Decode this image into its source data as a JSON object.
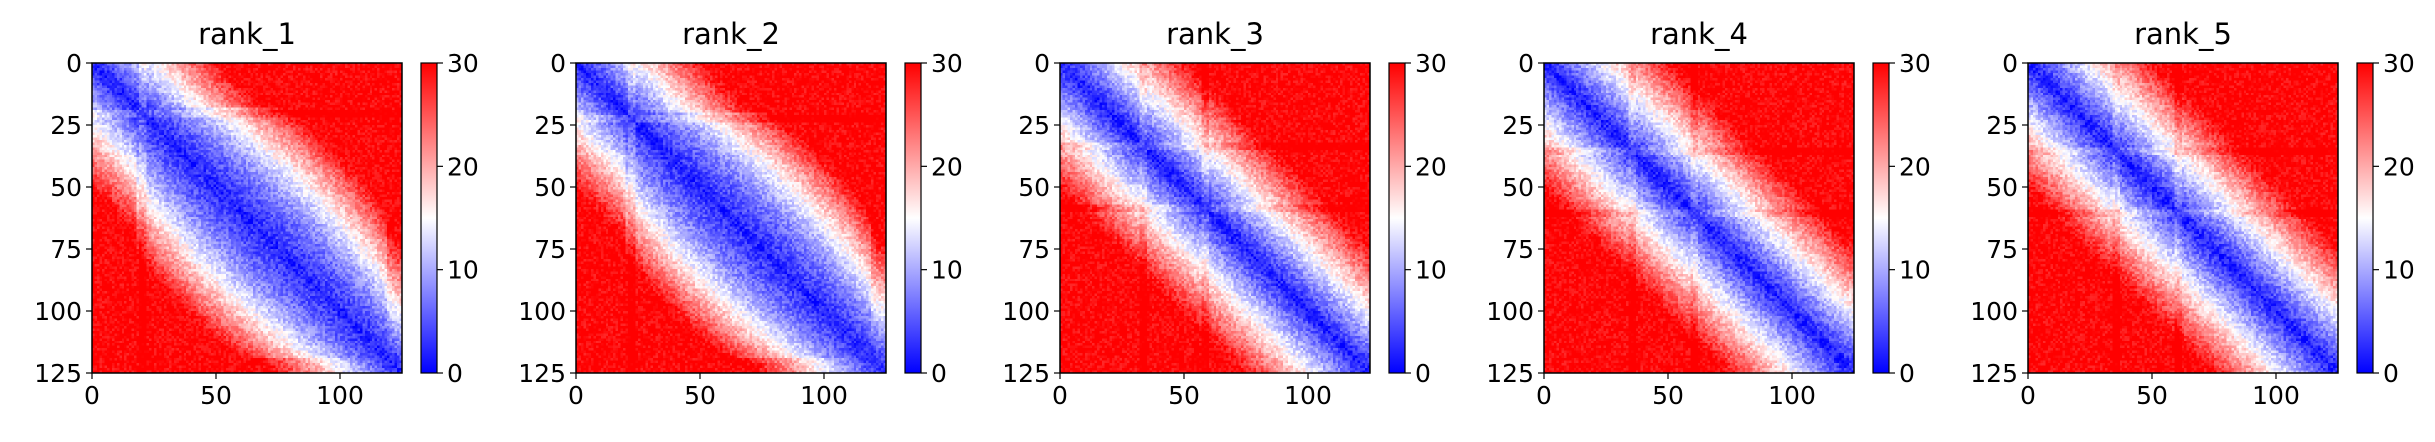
{
  "chart_data": [
    {
      "type": "heatmap",
      "title": "rank_1",
      "matrix_size": 125,
      "x_ticks": [
        "0",
        "50",
        "100"
      ],
      "y_ticks": [
        "0",
        "25",
        "50",
        "75",
        "100",
        "125"
      ],
      "clim": [
        0,
        30
      ],
      "colorbar_ticks": [
        "0",
        "10",
        "20",
        "30"
      ],
      "colormap": {
        "low": "#0000ff",
        "mid": "#ffffff",
        "high": "#ff0000"
      },
      "grid": false,
      "domains": [
        [
          0,
          20
        ],
        [
          18,
          118
        ]
      ],
      "boundaries": [
        20
      ]
    },
    {
      "type": "heatmap",
      "title": "rank_2",
      "matrix_size": 125,
      "x_ticks": [
        "0",
        "50",
        "100"
      ],
      "y_ticks": [
        "0",
        "25",
        "50",
        "75",
        "100",
        "125"
      ],
      "clim": [
        0,
        30
      ],
      "colorbar_ticks": [
        "0",
        "10",
        "20",
        "30"
      ],
      "colormap": {
        "low": "#0000ff",
        "mid": "#ffffff",
        "high": "#ff0000"
      },
      "grid": false,
      "domains": [
        [
          0,
          22
        ],
        [
          20,
          118
        ]
      ],
      "boundaries": [
        22
      ]
    },
    {
      "type": "heatmap",
      "title": "rank_3",
      "matrix_size": 125,
      "x_ticks": [
        "0",
        "50",
        "100"
      ],
      "y_ticks": [
        "0",
        "25",
        "50",
        "75",
        "100",
        "125"
      ],
      "clim": [
        0,
        30
      ],
      "colorbar_ticks": [
        "0",
        "10",
        "20",
        "30"
      ],
      "colormap": {
        "low": "#0000ff",
        "mid": "#ffffff",
        "high": "#ff0000"
      },
      "grid": false,
      "domains": [
        [
          0,
          32
        ],
        [
          33,
          60
        ],
        [
          58,
          118
        ],
        [
          118,
          125
        ]
      ],
      "boundaries": [
        33,
        58
      ]
    },
    {
      "type": "heatmap",
      "title": "rank_4",
      "matrix_size": 125,
      "x_ticks": [
        "0",
        "50",
        "100"
      ],
      "y_ticks": [
        "0",
        "25",
        "50",
        "75",
        "100",
        "125"
      ],
      "clim": [
        0,
        30
      ],
      "colorbar_ticks": [
        "0",
        "10",
        "20",
        "30"
      ],
      "colormap": {
        "low": "#0000ff",
        "mid": "#ffffff",
        "high": "#ff0000"
      },
      "grid": false,
      "domains": [
        [
          0,
          35
        ],
        [
          28,
          62
        ],
        [
          58,
          118
        ],
        [
          118,
          125
        ]
      ],
      "boundaries": [
        35,
        60
      ]
    },
    {
      "type": "heatmap",
      "title": "rank_5",
      "matrix_size": 125,
      "x_ticks": [
        "0",
        "50",
        "100"
      ],
      "y_ticks": [
        "0",
        "25",
        "50",
        "75",
        "100",
        "125"
      ],
      "clim": [
        0,
        30
      ],
      "colorbar_ticks": [
        "0",
        "10",
        "20",
        "30"
      ],
      "colormap": {
        "low": "#0000ff",
        "mid": "#ffffff",
        "high": "#ff0000"
      },
      "grid": false,
      "domains": [
        [
          0,
          35
        ],
        [
          28,
          62
        ],
        [
          58,
          118
        ],
        [
          118,
          125
        ]
      ],
      "boundaries": [
        35,
        60
      ]
    }
  ]
}
